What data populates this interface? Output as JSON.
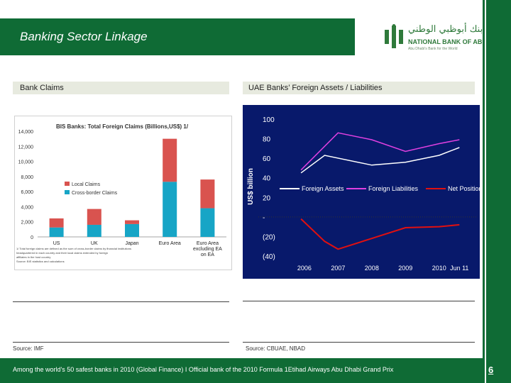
{
  "header": {
    "title": "Banking Sector Linkage"
  },
  "logo": {
    "arabic": "بنك أبوظبي الوطني",
    "english": "NATIONAL BANK OF ABU DHABI",
    "tagline": "Abu Dhabi's Bank for the World"
  },
  "left_panel": {
    "header": "Bank Claims",
    "source": "Source: IMF"
  },
  "right_panel": {
    "header": "UAE Banks’ Foreign Assets / Liabilities",
    "source": "Source: CBUAE, NBAD"
  },
  "footer": {
    "text": "Among the world's 50 safest banks in 2010 (Global Finance) I Official bank of the 2010 Formula 1Etihad Airways Abu Dhabi Grand Prix",
    "page": "6"
  },
  "colors": {
    "brand_green": "#0f6b35",
    "local_claims": "#d9534f",
    "crossborder_claims": "#17a5c6",
    "uae_bg": "#08196b",
    "foreign_assets": "#ffffff",
    "foreign_liabilities": "#e040e0",
    "net_position": "#e01010"
  },
  "chart_data": [
    {
      "type": "bar",
      "stacked": true,
      "title": "BIS Banks: Total Foreign Claims (Billions,US$) 1/",
      "categories": [
        "US",
        "UK",
        "Japan",
        "Euro Area",
        "Euro Area excluding EA on EA"
      ],
      "category_lines": [
        [
          "US"
        ],
        [
          "UK"
        ],
        [
          "Japan"
        ],
        [
          "Euro Area"
        ],
        [
          "Euro Area",
          "excluding EA",
          "on EA"
        ]
      ],
      "series": [
        {
          "name": "Cross-border Claims",
          "values": [
            1250,
            1600,
            1700,
            7300,
            3800
          ]
        },
        {
          "name": "Local Claims",
          "values": [
            1200,
            2100,
            500,
            5700,
            3800
          ]
        }
      ],
      "ylim": [
        0,
        14000
      ],
      "yticks": [
        "0",
        "2,000",
        "4,000",
        "6,000",
        "8,000",
        "10,000",
        "12,000",
        "14,000"
      ],
      "legend": [
        "Local Claims",
        "Cross-border Claims"
      ],
      "footnote": [
        "1/ Total foreign claims are defined as the sum of cross-border claims by financial institutions",
        "headquartered in each country and their local claims extended by foreign",
        "affiliates in the host country",
        "Source: BIS statistics and calculations"
      ]
    },
    {
      "type": "line",
      "categories": [
        "2006",
        "2007",
        "2008",
        "2009",
        "2010",
        "Jun 11"
      ],
      "x_positions": [
        0,
        1,
        2,
        3,
        4,
        4.6
      ],
      "ylabel": "US$ billion",
      "ylim": [
        -40,
        100
      ],
      "yticks": [
        "100",
        "80",
        "60",
        "40",
        "20",
        "-",
        "(20)",
        "(40)"
      ],
      "series": [
        {
          "name": "Foreign Assets",
          "x": [
            -0.1,
            0.6,
            2.0,
            3.0,
            4.0,
            4.6
          ],
          "values": [
            45,
            63,
            53,
            56,
            63,
            71
          ]
        },
        {
          "name": "Foreign Liabilities",
          "x": [
            -0.1,
            1.0,
            2.0,
            3.0,
            4.0,
            4.6
          ],
          "values": [
            48,
            86,
            79,
            67,
            75,
            79
          ]
        },
        {
          "name": "Net Position",
          "x": [
            -0.1,
            0.6,
            1.0,
            2.0,
            3.0,
            4.0,
            4.6
          ],
          "values": [
            -2,
            -25,
            -33,
            -22,
            -11,
            -10,
            -8
          ]
        }
      ]
    }
  ]
}
